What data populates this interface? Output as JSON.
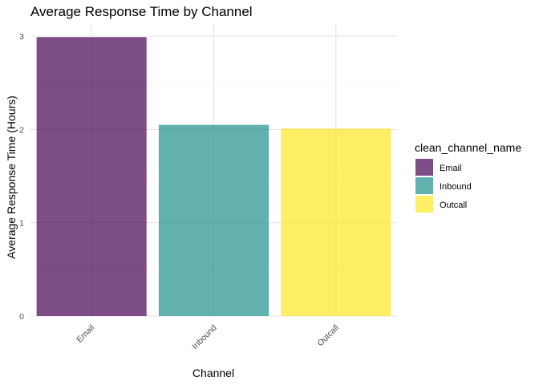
{
  "chart_data": {
    "type": "bar",
    "title": "Average Response Time by Channel",
    "xlabel": "Channel",
    "ylabel": "Average Response Time (Hours)",
    "categories": [
      "Email",
      "Inbound",
      "Outcall"
    ],
    "values": [
      2.99,
      2.05,
      2.01
    ],
    "ylim": [
      0,
      3.13
    ],
    "y_ticks": [
      "0",
      "1",
      "2",
      "3"
    ],
    "grid": true,
    "bar_colors": [
      "#440154",
      "#21908C",
      "#FDE725"
    ],
    "bar_opacity": 0.7,
    "legend": {
      "title": "clean_channel_name",
      "position": "right",
      "items": [
        "Email",
        "Inbound",
        "Outcall"
      ]
    }
  }
}
